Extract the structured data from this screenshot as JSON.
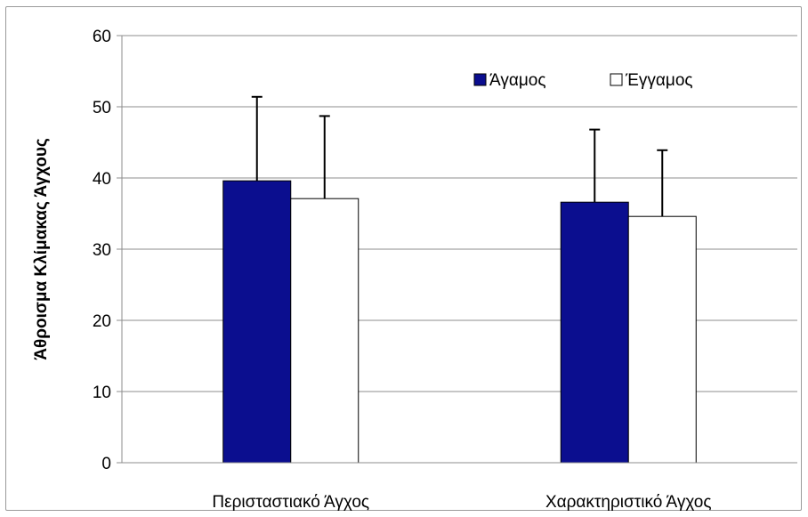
{
  "chart_data": {
    "type": "bar",
    "title": "",
    "xlabel": "",
    "ylabel": "Άθροισμα Κλίμακας Άγχους",
    "categories": [
      "Περισταστιακό Άγχος",
      "Χαρακτηριστικό Άγχος"
    ],
    "series": [
      {
        "name": "Άγαμος",
        "values": [
          39.6,
          36.6
        ],
        "error_plus": [
          11.8,
          10.2
        ],
        "color": "#0b0e8f"
      },
      {
        "name": "Έγγαμος",
        "values": [
          37.1,
          34.6
        ],
        "error_plus": [
          11.6,
          9.3
        ],
        "color": "#ffffff"
      }
    ],
    "ylim": [
      0,
      60
    ],
    "yticks": [
      0,
      10,
      20,
      30,
      40,
      50,
      60
    ],
    "grid": true,
    "legend_position": "top-right"
  }
}
